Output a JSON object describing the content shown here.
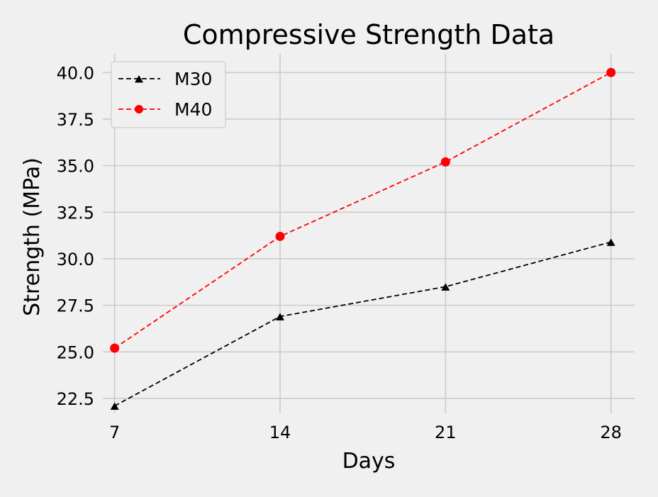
{
  "chart_data": {
    "type": "line",
    "title": "Compressive Strength Data",
    "xlabel": "Days",
    "ylabel": "Strength (MPa)",
    "x": [
      7,
      14,
      21,
      28
    ],
    "x_tick_labels": [
      "7",
      "14",
      "21",
      "28"
    ],
    "xlim": [
      6.5,
      29
    ],
    "ylim": [
      21.7,
      41.0
    ],
    "y_ticks": [
      22.5,
      25.0,
      27.5,
      30.0,
      32.5,
      35.0,
      37.5,
      40.0
    ],
    "y_tick_labels": [
      "22.5",
      "25.0",
      "27.5",
      "30.0",
      "32.5",
      "35.0",
      "37.5",
      "40.0"
    ],
    "grid": true,
    "legend_position": "top-left",
    "series": [
      {
        "name": "M30",
        "values": [
          22.1,
          26.9,
          28.5,
          30.9
        ],
        "color": "#000000",
        "marker": "triangle",
        "line_style": "dashed"
      },
      {
        "name": "M40",
        "values": [
          25.2,
          31.2,
          35.2,
          40.0
        ],
        "color": "#ff0000",
        "marker": "circle",
        "line_style": "dashed"
      }
    ]
  },
  "colors": {
    "background": "#f0f0f0",
    "grid": "#cbcbcb"
  }
}
